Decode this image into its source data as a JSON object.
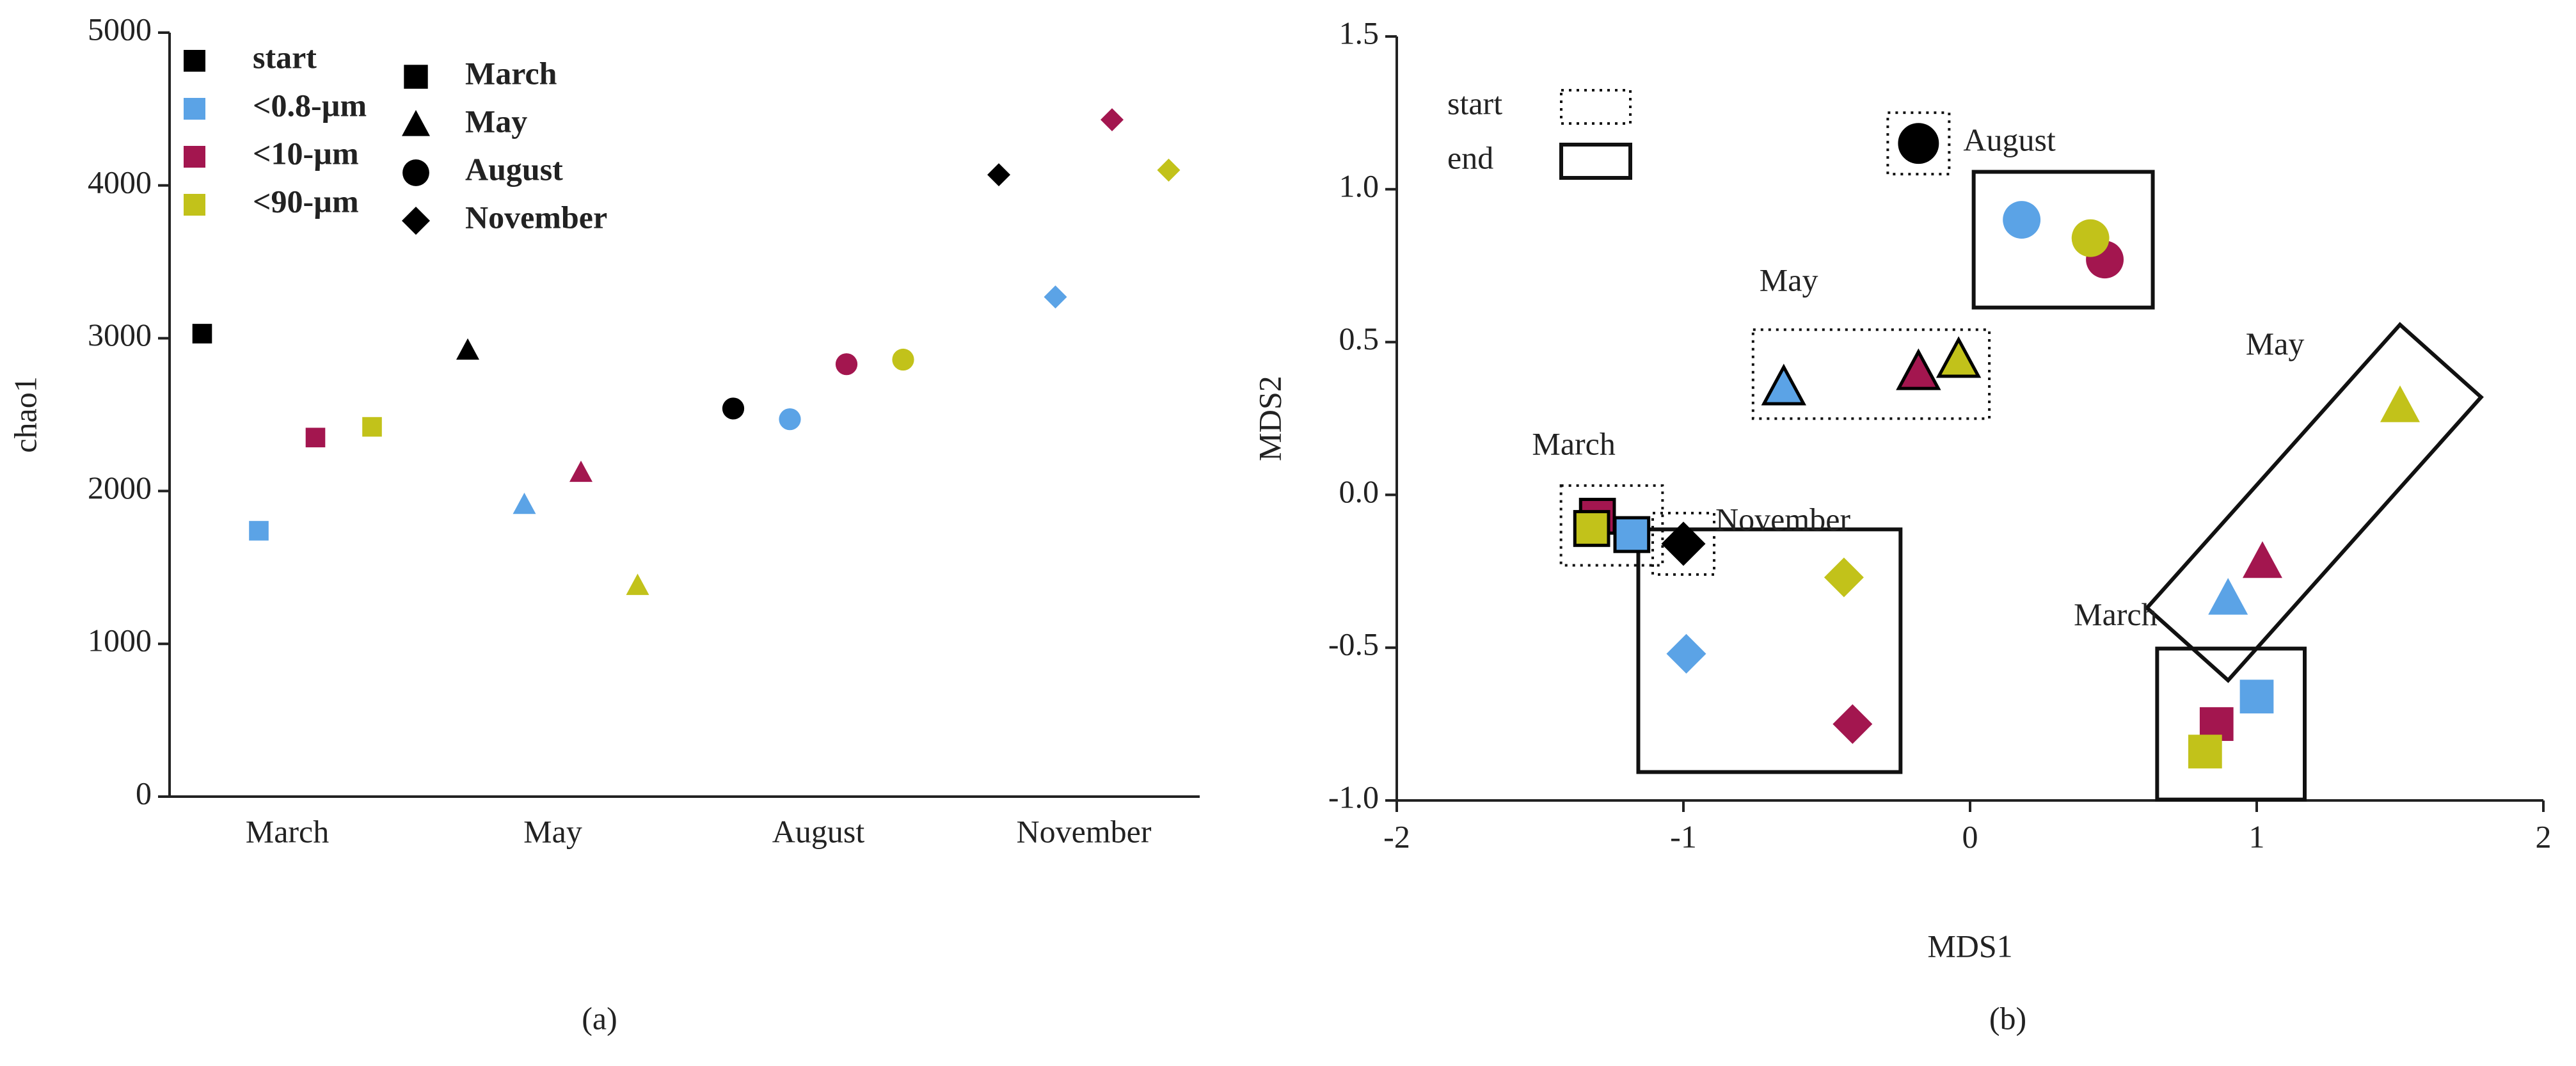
{
  "chart_data": [
    {
      "type": "scatter",
      "ylabel": "chao1",
      "subplot_label": "(a)",
      "categories": [
        "March",
        "May",
        "August",
        "November"
      ],
      "markers": [
        "square",
        "triangle",
        "circle",
        "diamond"
      ],
      "series": [
        {
          "name": "start",
          "color": "#000000",
          "values": [
            3030,
            2920,
            2540,
            4070
          ]
        },
        {
          "name": "<0.8-µm",
          "color": "#5ba3e6",
          "values": [
            1740,
            1910,
            2470,
            3270
          ]
        },
        {
          "name": "<10-µm",
          "color": "#a3164f",
          "values": [
            2350,
            2120,
            2830,
            4430
          ]
        },
        {
          "name": "<90-µm",
          "color": "#c2c21a",
          "values": [
            2420,
            1380,
            2860,
            4100
          ]
        }
      ],
      "ylim": [
        0,
        5000
      ],
      "yticks": [
        0,
        1000,
        2000,
        3000,
        4000,
        5000
      ]
    },
    {
      "type": "scatter",
      "xlabel": "MDS1",
      "ylabel": "MDS2",
      "subplot_label": "(b)",
      "xlim": [
        -2,
        2
      ],
      "xticks": [
        -2,
        -1,
        0,
        1,
        2
      ],
      "ylim": [
        -1,
        1.5
      ],
      "yticks": [
        {
          "value": -1,
          "label": "-1.0"
        },
        -0.5,
        {
          "value": 0,
          "label": "0.0"
        },
        0.5,
        {
          "value": 1,
          "label": "1.0"
        },
        1.5
      ],
      "legend": [
        {
          "label": "start",
          "style": "dotted"
        },
        {
          "label": "end",
          "style": "solid"
        }
      ],
      "series": [
        {
          "color": "#000000",
          "x": [
            -0.18,
            -1.0
          ],
          "values": [
            1.15,
            -0.16
          ],
          "markers": [
            "circle",
            "diamond"
          ],
          "phase": [
            "start",
            "start"
          ]
        },
        {
          "color": "#5ba3e6",
          "x": [
            -1.18,
            -0.65,
            0.18,
            -0.99,
            0.9,
            1.0
          ],
          "values": [
            -0.13,
            0.35,
            0.9,
            -0.52,
            -0.34,
            -0.66
          ],
          "markers": [
            "square",
            "triangle",
            "circle",
            "diamond",
            "triangle",
            "square"
          ],
          "phase": [
            "start",
            "start",
            "end",
            "end",
            "end",
            "end"
          ]
        },
        {
          "color": "#a3164f",
          "x": [
            -1.3,
            -0.18,
            0.47,
            -0.41,
            1.02,
            0.86
          ],
          "values": [
            -0.07,
            0.4,
            0.77,
            -0.75,
            -0.22,
            -0.75
          ],
          "markers": [
            "square",
            "triangle",
            "circle",
            "diamond",
            "triangle",
            "square"
          ],
          "phase": [
            "start",
            "start",
            "end",
            "end",
            "end",
            "end"
          ]
        },
        {
          "color": "#c2c21a",
          "x": [
            -1.32,
            -0.04,
            0.42,
            -0.44,
            1.5,
            0.82
          ],
          "values": [
            -0.11,
            0.44,
            0.84,
            -0.27,
            0.29,
            -0.84
          ],
          "markers": [
            "square",
            "triangle",
            "circle",
            "diamond",
            "triangle",
            "square"
          ],
          "phase": [
            "start",
            "start",
            "end",
            "end",
            "end",
            "end"
          ]
        }
      ],
      "annotations": [
        {
          "text": "August",
          "marker": "circle",
          "phase": "start"
        },
        {
          "text": "May",
          "marker": "triangle",
          "phase": "start"
        },
        {
          "text": "March",
          "marker": "square",
          "phase": "start"
        },
        {
          "text": "November",
          "marker": "diamond",
          "phase": "start"
        },
        {
          "text": "May",
          "marker": "triangle",
          "phase": "end"
        },
        {
          "text": "March",
          "marker": "square",
          "phase": "end"
        }
      ],
      "oriented_boxes": [
        {
          "marker": "triangle",
          "phase": "end"
        }
      ]
    }
  ]
}
